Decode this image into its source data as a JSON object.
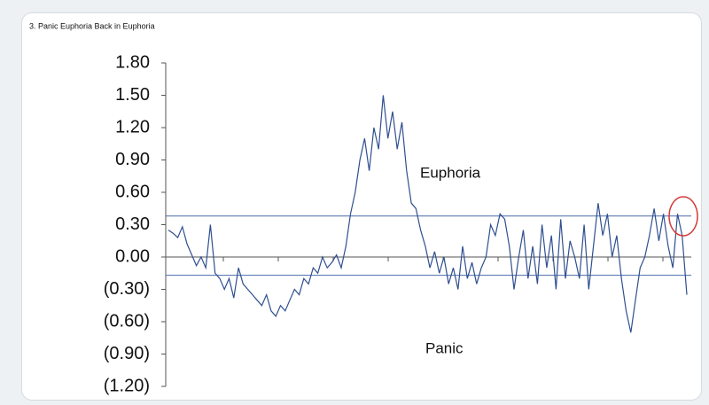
{
  "chart_data": {
    "type": "line",
    "title": "3. Panic Euphoria Back in Euphoria",
    "annotations": [
      "Euphoria",
      "Panic"
    ],
    "series": [
      {
        "color": "#2f4f8f",
        "values": [
          0.25,
          0.22,
          0.18,
          0.28,
          0.12,
          0.02,
          -0.08,
          0.0,
          -0.1,
          0.3,
          -0.15,
          -0.2,
          -0.3,
          -0.2,
          -0.38,
          -0.1,
          -0.25,
          -0.3,
          -0.35,
          -0.4,
          -0.45,
          -0.35,
          -0.5,
          -0.55,
          -0.45,
          -0.5,
          -0.4,
          -0.3,
          -0.35,
          -0.2,
          -0.25,
          -0.1,
          -0.15,
          0.0,
          -0.1,
          -0.05,
          0.02,
          -0.1,
          0.1,
          0.4,
          0.6,
          0.9,
          1.1,
          0.8,
          1.2,
          1.0,
          1.5,
          1.1,
          1.35,
          1.0,
          1.25,
          0.8,
          0.5,
          0.45,
          0.25,
          0.1,
          -0.1,
          0.05,
          -0.15,
          0.0,
          -0.25,
          -0.1,
          -0.3,
          0.1,
          -0.2,
          -0.05,
          -0.25,
          -0.1,
          0.0,
          0.3,
          0.2,
          0.4,
          0.35,
          0.1,
          -0.3,
          0.0,
          0.25,
          -0.2,
          0.1,
          -0.25,
          0.3,
          -0.1,
          0.2,
          -0.3,
          0.35,
          -0.2,
          0.15,
          0.0,
          -0.2,
          0.3,
          -0.3,
          0.1,
          0.5,
          0.2,
          0.4,
          0.0,
          0.2,
          -0.2,
          -0.5,
          -0.7,
          -0.4,
          -0.1,
          0.0,
          0.2,
          0.45,
          0.15,
          0.4,
          0.1,
          -0.1,
          0.4,
          0.2,
          -0.35
        ]
      }
    ],
    "reference_lines": [
      0.38,
      -0.17
    ],
    "ylim": [
      -1.2,
      1.8
    ],
    "yticks": [
      {
        "value": 1.8,
        "label": "1.80"
      },
      {
        "value": 1.5,
        "label": "1.50"
      },
      {
        "value": 1.2,
        "label": "1.20"
      },
      {
        "value": 0.9,
        "label": "0.90"
      },
      {
        "value": 0.6,
        "label": "0.60"
      },
      {
        "value": 0.3,
        "label": "0.30"
      },
      {
        "value": 0,
        "label": "0.00"
      },
      {
        "value": -0.3,
        "label": "(0.30)"
      },
      {
        "value": -0.6,
        "label": "(0.60)"
      },
      {
        "value": -0.9,
        "label": "(0.90)"
      },
      {
        "value": -1.2,
        "label": "(1.20)"
      }
    ]
  }
}
